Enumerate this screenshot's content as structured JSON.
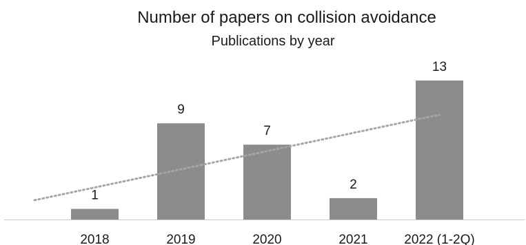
{
  "chart_data": {
    "type": "bar",
    "title": "Number of papers on collision avoidance",
    "subtitle": "Publications by year",
    "categories": [
      "2018",
      "2019",
      "2020",
      "2021",
      "2022 (1-2Q)"
    ],
    "values": [
      1,
      9,
      7,
      2,
      13
    ],
    "data_labels": [
      "1",
      "9",
      "7",
      "2",
      "13"
    ],
    "xlabel": "",
    "ylabel": "",
    "ylim": [
      0,
      13
    ],
    "grid": false,
    "legend": "none",
    "trendline": {
      "type": "linear",
      "style": "dotted",
      "color": "#a6a6a6"
    },
    "colors": {
      "bar": "#8c8c8d",
      "axis": "#c8c8c8",
      "text": "#1a1a1a"
    }
  }
}
